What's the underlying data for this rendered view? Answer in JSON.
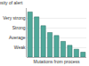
{
  "chart_data": {
    "type": "bar",
    "y_label": "Intensity of alert",
    "x_label": "Mutations from process",
    "categories": [
      null,
      null,
      null,
      null,
      null,
      null,
      null,
      null,
      null
    ],
    "values": [
      4.6,
      4.1,
      3.2,
      2.5,
      2.2,
      1.6,
      1.2,
      0.8,
      0.5
    ],
    "color": "#4fa89a",
    "ylim": [
      0,
      5
    ],
    "yticks": [
      {
        "value": 1,
        "label": "Weak"
      },
      {
        "value": 2,
        "label": "Average"
      },
      {
        "value": 3,
        "label": "Strong"
      },
      {
        "value": 4,
        "label": "Very strong"
      }
    ],
    "grid": true
  }
}
